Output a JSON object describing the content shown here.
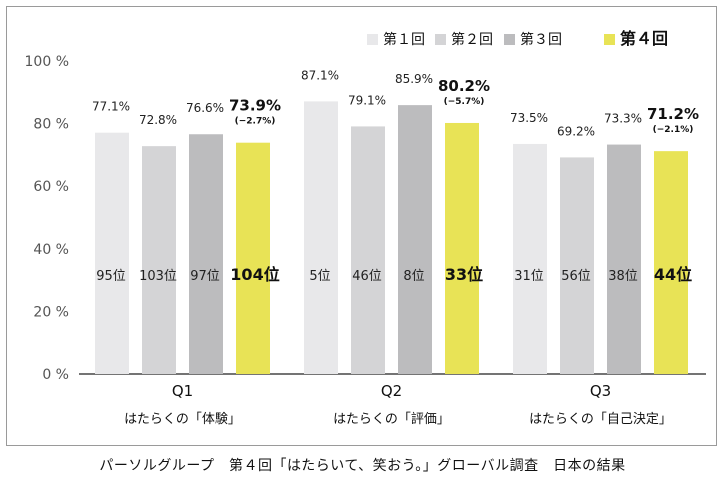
{
  "chart_data": {
    "type": "bar",
    "title": "",
    "xlabel": "",
    "ylabel": "",
    "ylim": [
      0,
      100
    ],
    "y_ticks": [
      0,
      20,
      40,
      60,
      80,
      100
    ],
    "y_tick_suffix": "%",
    "grid": false,
    "legend_position": "top-right",
    "categories": [
      {
        "code": "Q1",
        "label": "はたらくの「体験」"
      },
      {
        "code": "Q2",
        "label": "はたらくの「評価」"
      },
      {
        "code": "Q3",
        "label": "はたらくの「自己決定」"
      }
    ],
    "series": [
      {
        "name": "第１回",
        "color": "#e8e8ea",
        "values": [
          77.1,
          87.1,
          73.5
        ],
        "value_labels": [
          "77.1%",
          "87.1%",
          "73.5%"
        ],
        "ranks": [
          "95位",
          "5位",
          "31位"
        ]
      },
      {
        "name": "第２回",
        "color": "#d4d4d6",
        "values": [
          72.8,
          79.1,
          69.2
        ],
        "value_labels": [
          "72.8%",
          "79.1%",
          "69.2%"
        ],
        "ranks": [
          "103位",
          "46位",
          "56位"
        ]
      },
      {
        "name": "第３回",
        "color": "#bcbcbe",
        "values": [
          76.6,
          85.9,
          73.3
        ],
        "value_labels": [
          "76.6%",
          "85.9%",
          "73.3%"
        ],
        "ranks": [
          "97位",
          "8位",
          "38位"
        ]
      },
      {
        "name": "第４回",
        "color": "#e8e356",
        "highlight": true,
        "values": [
          73.9,
          80.2,
          71.2
        ],
        "value_labels": [
          "73.9%",
          "80.2%",
          "71.2%"
        ],
        "changes": [
          "(−2.7%)",
          "(−5.7%)",
          "(−2.1%)"
        ],
        "ranks": [
          "104位",
          "33位",
          "44位"
        ]
      }
    ]
  },
  "caption": "パーソルグループ　第４回「はたらいて、笑おう。」グローバル調査　日本の結果"
}
